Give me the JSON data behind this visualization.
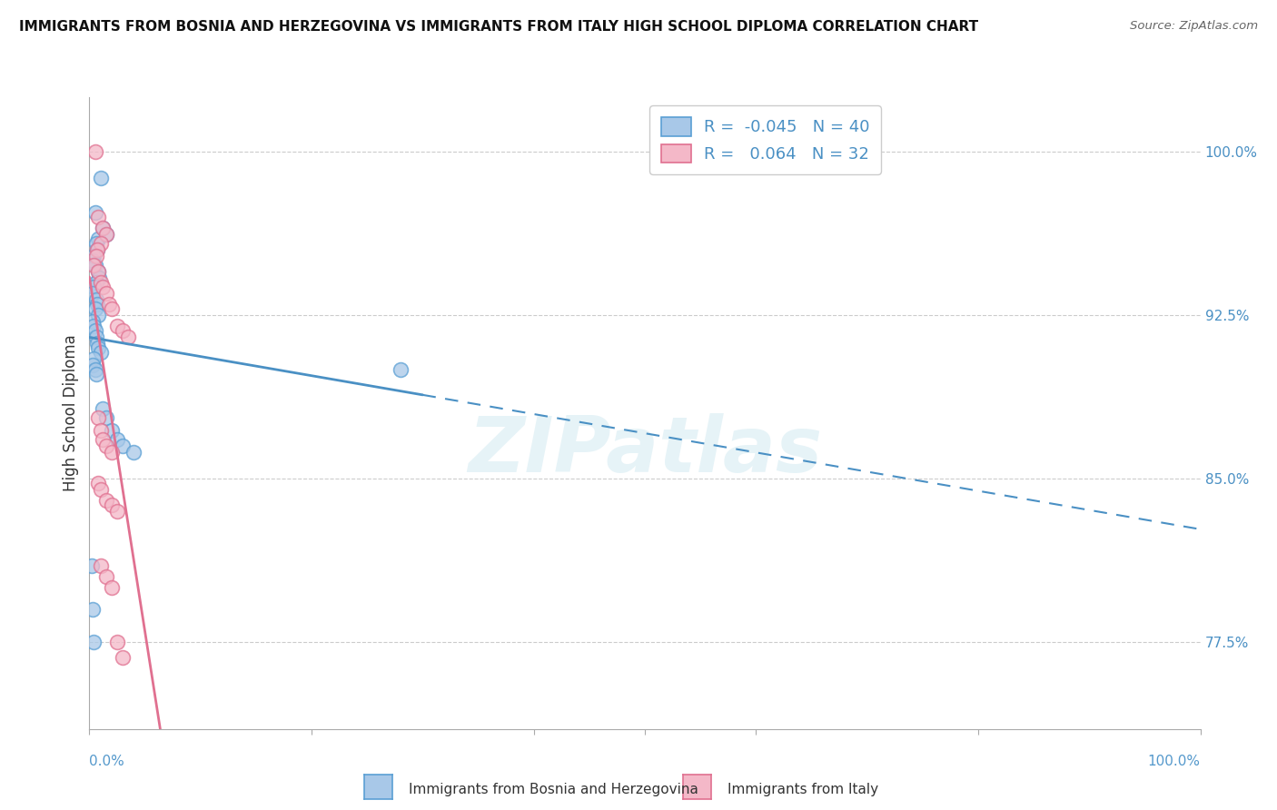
{
  "title": "IMMIGRANTS FROM BOSNIA AND HERZEGOVINA VS IMMIGRANTS FROM ITALY HIGH SCHOOL DIPLOMA CORRELATION CHART",
  "source": "Source: ZipAtlas.com",
  "ylabel": "High School Diploma",
  "right_ytick_values": [
    100.0,
    92.5,
    85.0,
    77.5
  ],
  "xlim": [
    0.0,
    1.0
  ],
  "ylim": [
    0.735,
    1.025
  ],
  "legend_label1": "Immigrants from Bosnia and Herzegovina",
  "legend_label2": "Immigrants from Italy",
  "R1": -0.045,
  "N1": 40,
  "R2": 0.064,
  "N2": 32,
  "color_blue_fill": "#a8c8e8",
  "color_blue_edge": "#5a9fd4",
  "color_blue_line": "#4a90c4",
  "color_pink_fill": "#f4b8c8",
  "color_pink_edge": "#e07090",
  "color_pink_line": "#e07090",
  "blue_x": [
    0.005,
    0.01,
    0.008,
    0.012,
    0.015,
    0.006,
    0.007,
    0.004,
    0.003,
    0.005,
    0.008,
    0.009,
    0.006,
    0.004,
    0.003,
    0.006,
    0.007,
    0.005,
    0.008,
    0.003,
    0.004,
    0.005,
    0.006,
    0.007,
    0.008,
    0.01,
    0.004,
    0.003,
    0.005,
    0.006,
    0.012,
    0.015,
    0.02,
    0.025,
    0.03,
    0.04,
    0.002,
    0.003,
    0.004,
    0.28
  ],
  "blue_y": [
    0.972,
    0.988,
    0.96,
    0.965,
    0.962,
    0.958,
    0.955,
    0.952,
    0.95,
    0.948,
    0.945,
    0.942,
    0.94,
    0.938,
    0.935,
    0.932,
    0.93,
    0.928,
    0.925,
    0.922,
    0.92,
    0.918,
    0.915,
    0.912,
    0.91,
    0.908,
    0.905,
    0.902,
    0.9,
    0.898,
    0.882,
    0.878,
    0.872,
    0.868,
    0.865,
    0.862,
    0.81,
    0.79,
    0.775,
    0.9
  ],
  "pink_x": [
    0.005,
    0.008,
    0.012,
    0.015,
    0.01,
    0.007,
    0.006,
    0.004,
    0.008,
    0.01,
    0.012,
    0.015,
    0.018,
    0.02,
    0.025,
    0.03,
    0.035,
    0.008,
    0.01,
    0.012,
    0.015,
    0.02,
    0.008,
    0.01,
    0.015,
    0.02,
    0.025,
    0.01,
    0.015,
    0.02,
    0.025,
    0.03
  ],
  "pink_y": [
    1.0,
    0.97,
    0.965,
    0.962,
    0.958,
    0.955,
    0.952,
    0.948,
    0.945,
    0.94,
    0.938,
    0.935,
    0.93,
    0.928,
    0.92,
    0.918,
    0.915,
    0.878,
    0.872,
    0.868,
    0.865,
    0.862,
    0.848,
    0.845,
    0.84,
    0.838,
    0.835,
    0.81,
    0.805,
    0.8,
    0.775,
    0.768
  ],
  "watermark": "ZIPatlas",
  "watermark_color": "#add8e6",
  "watermark_alpha": 0.3
}
